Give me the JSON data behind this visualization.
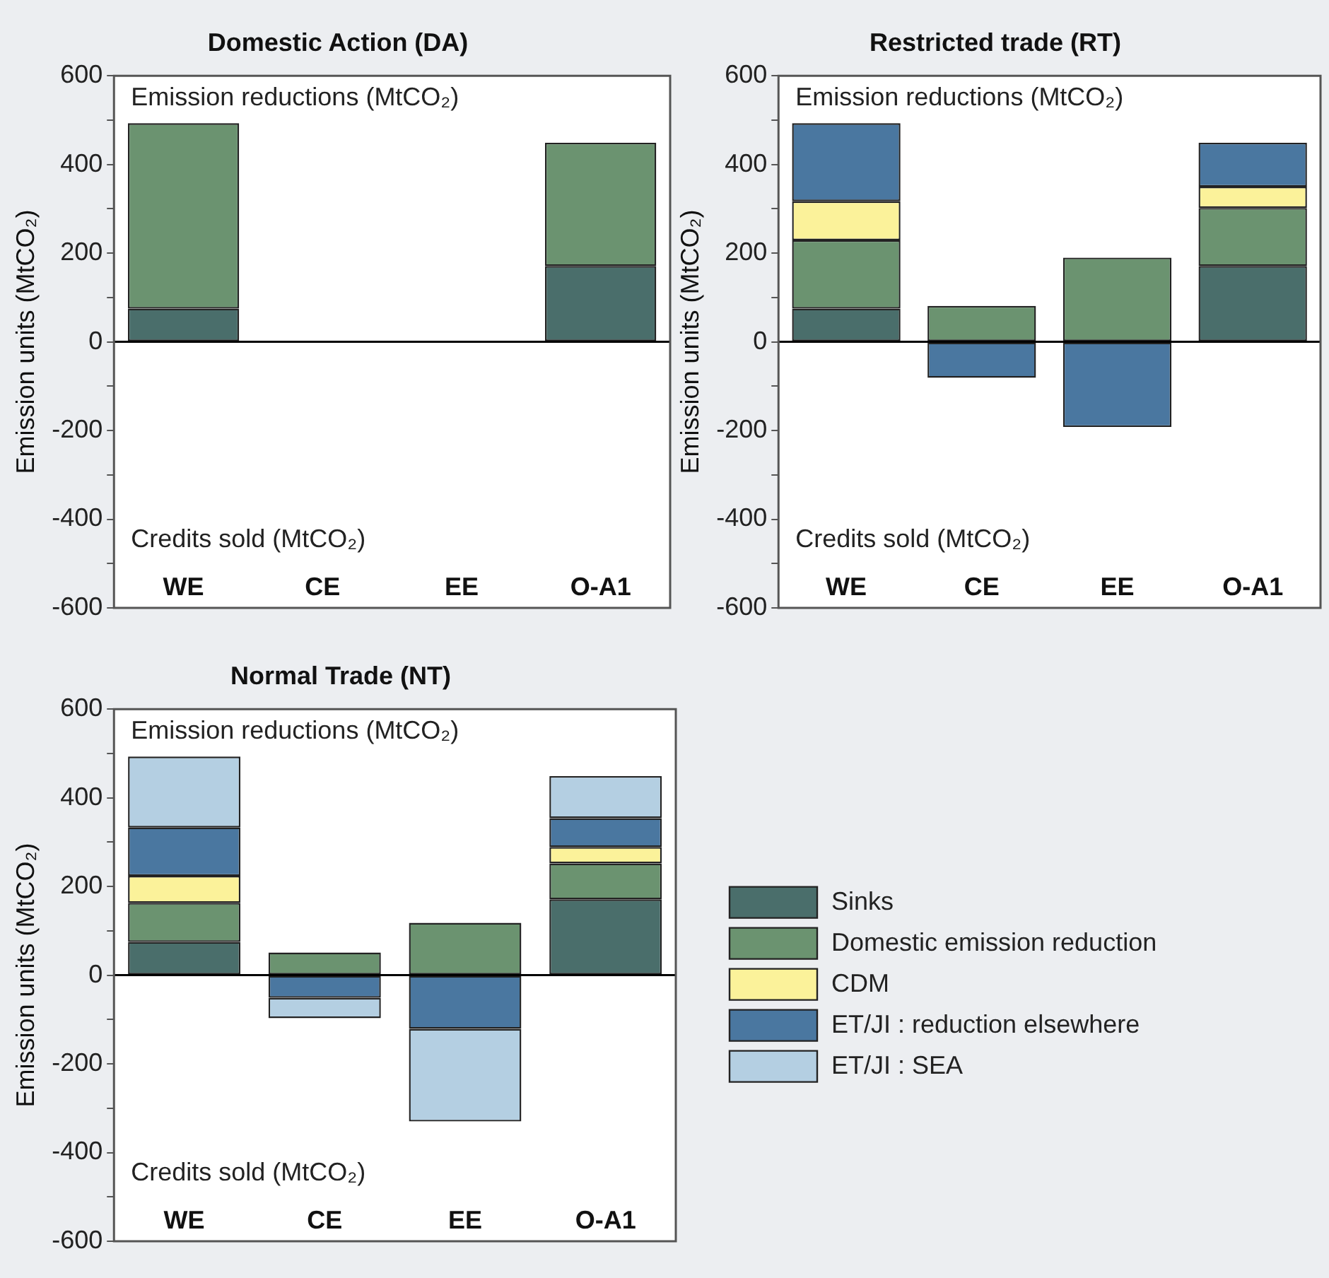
{
  "chart_data": [
    {
      "type": "bar",
      "title": "Domestic Action (DA)",
      "ylabel": "Emission units (MtCO₂)",
      "categories": [
        "WE",
        "CE",
        "EE",
        "O-A1"
      ],
      "stacked": true,
      "ylim": [
        -600,
        600
      ],
      "yticks": [
        -600,
        {
          "value": -500,
          "label": null
        },
        -400,
        {
          "value": -300,
          "label": null
        },
        -200,
        {
          "value": -100,
          "label": null
        },
        0,
        {
          "value": 100,
          "label": null
        },
        200,
        {
          "value": 300,
          "label": null
        },
        400,
        {
          "value": 500,
          "label": null
        },
        600
      ],
      "annotations": [
        "Emission reductions (MtCO₂)",
        "Credits sold (MtCO₂)"
      ],
      "ref_lines": [
        {
          "axis": "y",
          "value": 0,
          "color": "#000000"
        }
      ],
      "legend": false,
      "series": [
        {
          "color": "#4a6e6b",
          "values": [
            75,
            null,
            null,
            171
          ]
        },
        {
          "color": "#6b9370",
          "values": [
            418,
            null,
            null,
            278
          ]
        }
      ]
    },
    {
      "type": "bar",
      "title": "Restricted trade (RT)",
      "ylabel": "Emission units (MtCO₂)",
      "categories": [
        "WE",
        "CE",
        "EE",
        "O-A1"
      ],
      "stacked": true,
      "ylim": [
        -600,
        600
      ],
      "yticks": [
        -600,
        {
          "value": -500,
          "label": null
        },
        -400,
        {
          "value": -300,
          "label": null
        },
        -200,
        {
          "value": -100,
          "label": null
        },
        0,
        {
          "value": 100,
          "label": null
        },
        200,
        {
          "value": 300,
          "label": null
        },
        400,
        {
          "value": 500,
          "label": null
        },
        600
      ],
      "annotations": [
        "Emission reductions (MtCO₂)",
        "Credits sold (MtCO₂)"
      ],
      "ref_lines": [
        {
          "axis": "y",
          "value": 0,
          "color": "#000000"
        }
      ],
      "legend": false,
      "series": [
        {
          "color": "#4a6e6b",
          "values": [
            75,
            null,
            null,
            171
          ]
        },
        {
          "color": "#6b9370",
          "values": [
            154,
            81,
            190,
            131
          ]
        },
        {
          "color": "#fbf29a",
          "values": [
            88,
            null,
            null,
            48
          ]
        },
        {
          "color": "#4a77a0",
          "values": [
            176,
            -81,
            -192,
            99
          ]
        }
      ]
    },
    {
      "type": "bar",
      "title": "Normal Trade (NT)",
      "ylabel": "Emission units (MtCO₂)",
      "categories": [
        "WE",
        "CE",
        "EE",
        "O-A1"
      ],
      "stacked": true,
      "ylim": [
        -600,
        600
      ],
      "yticks": [
        -600,
        {
          "value": -500,
          "label": null
        },
        -400,
        {
          "value": -300,
          "label": null
        },
        -200,
        {
          "value": -100,
          "label": null
        },
        0,
        {
          "value": 100,
          "label": null
        },
        200,
        {
          "value": 300,
          "label": null
        },
        400,
        {
          "value": 500,
          "label": null
        },
        600
      ],
      "annotations": [
        "Emission reductions (MtCO₂)",
        "Credits sold (MtCO₂)"
      ],
      "ref_lines": [
        {
          "axis": "y",
          "value": 0,
          "color": "#000000"
        }
      ],
      "legend": "right",
      "series": [
        {
          "name": "Sinks",
          "color": "#4a6e6b",
          "values": [
            75,
            null,
            null,
            171
          ]
        },
        {
          "name": "Domestic emission reduction",
          "color": "#6b9370",
          "values": [
            88,
            51,
            118,
            81
          ]
        },
        {
          "name": "CDM",
          "color": "#fbf29a",
          "values": [
            61,
            null,
            null,
            37
          ]
        },
        {
          "name": "ET/JI : reduction elsewhere",
          "color": "#4a77a0",
          "values": [
            109,
            -51,
            -121,
            65
          ]
        },
        {
          "name": "ET/JI : SEA",
          "color": "#b4cfe2",
          "values": [
            160,
            -46,
            -209,
            95
          ]
        }
      ]
    }
  ]
}
